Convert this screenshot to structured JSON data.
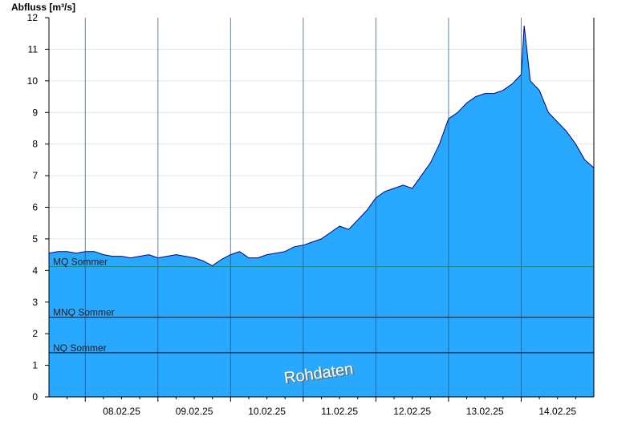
{
  "chart_data": {
    "type": "area",
    "ylabel": "Abfluss [m³/s]",
    "ylim": [
      0,
      12
    ],
    "yticks": [
      "0",
      "1",
      "2",
      "3",
      "4",
      "5",
      "6",
      "7",
      "8",
      "9",
      "10",
      "11",
      "12"
    ],
    "x_start": "07.02.25 12:00",
    "x_end": "14.02.25 24:00",
    "xtick_labels": [
      "08.02.25",
      "09.02.25",
      "10.02.25",
      "11.02.25",
      "12.02.25",
      "13.02.25",
      "14.02.25"
    ],
    "fill_color": "#29a8ff",
    "line_color": "#000080",
    "watermark": "Rohdaten",
    "reference_lines": [
      {
        "label": "MQ Sommer",
        "value": 4.12,
        "color": "#2e8b2e"
      },
      {
        "label": "MNQ Sommer",
        "value": 2.52,
        "color": "#000000"
      },
      {
        "label": "NQ Sommer",
        "value": 1.4,
        "color": "#000000"
      }
    ],
    "series": [
      {
        "x_hours": [
          0,
          3,
          6,
          9,
          12,
          15,
          18,
          21,
          24,
          27,
          30,
          33,
          36,
          39,
          42,
          45,
          48,
          51,
          54,
          57,
          60,
          63,
          66,
          69,
          72,
          75,
          78,
          81,
          84,
          87,
          90,
          93,
          96,
          99,
          102,
          105,
          108,
          111,
          114,
          117,
          120,
          123,
          126,
          129,
          132,
          135,
          136,
          138,
          141,
          144,
          147,
          150,
          153,
          156,
          157,
          159,
          162,
          165,
          168,
          171,
          174,
          177,
          180
        ],
        "values": [
          4.55,
          4.6,
          4.6,
          4.55,
          4.6,
          4.6,
          4.5,
          4.45,
          4.45,
          4.4,
          4.45,
          4.5,
          4.4,
          4.45,
          4.5,
          4.45,
          4.4,
          4.3,
          4.15,
          4.35,
          4.5,
          4.6,
          4.4,
          4.4,
          4.5,
          4.55,
          4.6,
          4.75,
          4.8,
          4.9,
          5.0,
          5.2,
          5.4,
          5.3,
          5.6,
          5.9,
          6.3,
          6.5,
          6.6,
          6.7,
          6.6,
          7.0,
          7.4,
          8.0,
          8.8,
          9.0,
          9.1,
          9.3,
          9.5,
          9.6,
          9.6,
          9.7,
          9.9,
          10.2,
          11.75,
          10.0,
          9.7,
          9.0,
          8.7,
          8.4,
          8.0,
          7.5,
          7.25
        ]
      }
    ]
  }
}
